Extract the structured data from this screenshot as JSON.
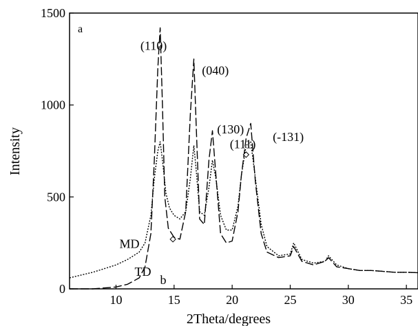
{
  "chart_data": {
    "type": "line",
    "title": "",
    "xlabel": "2Theta/degrees",
    "ylabel": "Intensity",
    "xlim": [
      6,
      36
    ],
    "ylim": [
      0,
      1500
    ],
    "xticks": [
      10,
      15,
      20,
      25,
      30,
      35
    ],
    "xtick_labels": [
      "10",
      "15",
      "20",
      "25",
      "30",
      "35"
    ],
    "yticks": [
      0,
      500,
      1000,
      1500
    ],
    "ytick_labels": [
      "0",
      "500",
      "1000",
      "1500"
    ],
    "grid": false,
    "legend": "none",
    "panel_label": "a",
    "series": [
      {
        "name": "MD",
        "style": "dash",
        "x": [
          6,
          8,
          10,
          11,
          12,
          12.5,
          13,
          13.3,
          13.6,
          13.8,
          14.0,
          14.2,
          14.5,
          15.0,
          15.5,
          16.0,
          16.4,
          16.7,
          16.9,
          17.2,
          17.6,
          18.0,
          18.3,
          18.6,
          19.0,
          19.5,
          20.0,
          20.5,
          20.8,
          21.2,
          21.6,
          22.0,
          22.5,
          23,
          24,
          25,
          25.3,
          26,
          27,
          28,
          28.3,
          29,
          30,
          31,
          32,
          33,
          34,
          35,
          36
        ],
        "y": [
          0,
          0,
          10,
          25,
          60,
          120,
          300,
          700,
          1200,
          1420,
          1000,
          500,
          330,
          280,
          270,
          420,
          950,
          1250,
          900,
          380,
          350,
          700,
          860,
          620,
          300,
          250,
          260,
          420,
          620,
          820,
          900,
          580,
          300,
          200,
          170,
          180,
          230,
          150,
          130,
          150,
          170,
          120,
          110,
          100,
          100,
          95,
          90,
          90,
          88
        ]
      },
      {
        "name": "TD",
        "style": "dot",
        "x": [
          6,
          7,
          8,
          9,
          10,
          11,
          11.5,
          12,
          12.5,
          13,
          13.3,
          13.6,
          13.8,
          14.0,
          14.3,
          14.6,
          15.0,
          15.5,
          16.0,
          16.4,
          16.7,
          16.9,
          17.2,
          17.6,
          18.0,
          18.3,
          18.6,
          19.0,
          19.5,
          20.0,
          20.5,
          20.8,
          21.2,
          21.6,
          22.0,
          22.5,
          23,
          24,
          25,
          25.3,
          26,
          27,
          28,
          28.3,
          29,
          30,
          31,
          32,
          33,
          34,
          35,
          36
        ],
        "y": [
          60,
          75,
          90,
          110,
          130,
          160,
          180,
          200,
          250,
          400,
          600,
          750,
          800,
          700,
          520,
          440,
          400,
          380,
          420,
          600,
          780,
          650,
          420,
          400,
          550,
          700,
          600,
          400,
          320,
          320,
          450,
          620,
          780,
          800,
          600,
          350,
          230,
          180,
          190,
          250,
          160,
          140,
          150,
          180,
          130,
          110,
          100,
          100,
          95,
          90,
          90,
          88
        ]
      }
    ],
    "annotations": [
      {
        "text": "(110)",
        "x": 12.1,
        "y": 1300
      },
      {
        "text": "(040)",
        "x": 17.4,
        "y": 1165
      },
      {
        "text": "(130)",
        "x": 18.7,
        "y": 845
      },
      {
        "text": "(111)",
        "x": 19.8,
        "y": 765
      },
      {
        "text": "(-131)",
        "x": 23.5,
        "y": 805
      },
      {
        "text": "MD",
        "x": 10.3,
        "y": 223
      },
      {
        "text": "TD",
        "x": 11.6,
        "y": 72
      },
      {
        "text": "b",
        "x": 13.8,
        "y": 27
      }
    ],
    "markers": [
      {
        "x": 14.9,
        "y": 270
      },
      {
        "x": 21.2,
        "y": 730
      }
    ]
  }
}
